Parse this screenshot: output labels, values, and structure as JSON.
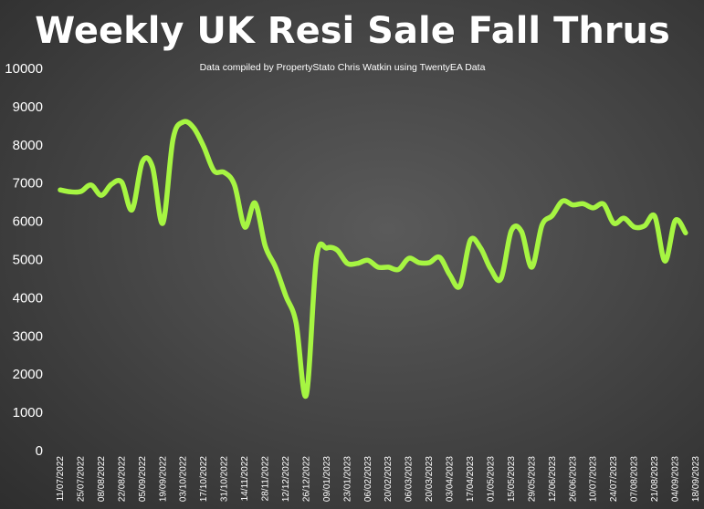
{
  "chart_data": {
    "type": "line",
    "title": "Weekly UK Resi Sale Fall Thrus",
    "subtitle": "Data compiled by PropertyStato Chris Watkin using TwentyEA Data",
    "xlabel": "",
    "ylabel": "",
    "ylim": [
      0,
      10000
    ],
    "yticks": [
      0,
      1000,
      2000,
      3000,
      4000,
      5000,
      6000,
      7000,
      8000,
      9000,
      10000
    ],
    "x_tick_labels": [
      "11/07/2022",
      "25/07/2022",
      "08/08/2022",
      "22/08/2022",
      "05/09/2022",
      "19/09/2022",
      "03/10/2022",
      "17/10/2022",
      "31/10/2022",
      "14/11/2022",
      "28/11/2022",
      "12/12/2022",
      "26/12/2022",
      "09/01/2023",
      "23/01/2023",
      "06/02/2023",
      "20/02/2023",
      "06/03/2023",
      "20/03/2023",
      "03/04/2023",
      "17/04/2023",
      "01/05/2023",
      "15/05/2023",
      "29/05/2023",
      "12/06/2023",
      "26/06/2023",
      "10/07/2023",
      "24/07/2023",
      "07/08/2023",
      "21/08/2023",
      "04/09/2023",
      "18/09/2023"
    ],
    "grid": false,
    "legend": "none",
    "line_color": "#a6f542",
    "series": [
      {
        "x": [
          "11/07/2022",
          "18/07/2022",
          "25/07/2022",
          "01/08/2022",
          "08/08/2022",
          "15/08/2022",
          "22/08/2022",
          "29/08/2022",
          "05/09/2022",
          "12/09/2022",
          "19/09/2022",
          "26/09/2022",
          "03/10/2022",
          "10/10/2022",
          "17/10/2022",
          "24/10/2022",
          "31/10/2022",
          "07/11/2022",
          "14/11/2022",
          "21/11/2022",
          "28/11/2022",
          "05/12/2022",
          "12/12/2022",
          "19/12/2022",
          "26/12/2022",
          "02/01/2023",
          "09/01/2023",
          "16/01/2023",
          "23/01/2023",
          "30/01/2023",
          "06/02/2023",
          "13/02/2023",
          "20/02/2023",
          "27/02/2023",
          "06/03/2023",
          "13/03/2023",
          "20/03/2023",
          "27/03/2023",
          "03/04/2023",
          "10/04/2023",
          "17/04/2023",
          "24/04/2023",
          "01/05/2023",
          "08/05/2023",
          "15/05/2023",
          "22/05/2023",
          "29/05/2023",
          "05/06/2023",
          "12/06/2023",
          "19/06/2023",
          "26/06/2023",
          "03/07/2023",
          "10/07/2023",
          "17/07/2023",
          "24/07/2023",
          "31/07/2023",
          "07/08/2023",
          "14/08/2023",
          "21/08/2023",
          "28/08/2023",
          "04/09/2023",
          "11/09/2023"
        ],
        "values": [
          6820,
          6770,
          6780,
          6950,
          6680,
          6970,
          7020,
          6300,
          7550,
          7420,
          5950,
          8150,
          8600,
          8450,
          7950,
          7320,
          7280,
          6950,
          5850,
          6480,
          5350,
          4800,
          4050,
          3350,
          1450,
          5050,
          5300,
          5250,
          4900,
          4900,
          4980,
          4800,
          4800,
          4740,
          5030,
          4920,
          4920,
          5060,
          4600,
          4310,
          5500,
          5300,
          4750,
          4500,
          5750,
          5730,
          4800,
          5900,
          6150,
          6530,
          6430,
          6460,
          6350,
          6450,
          5950,
          6080,
          5850,
          5880,
          6130,
          4960,
          6020,
          5700
        ]
      }
    ]
  }
}
